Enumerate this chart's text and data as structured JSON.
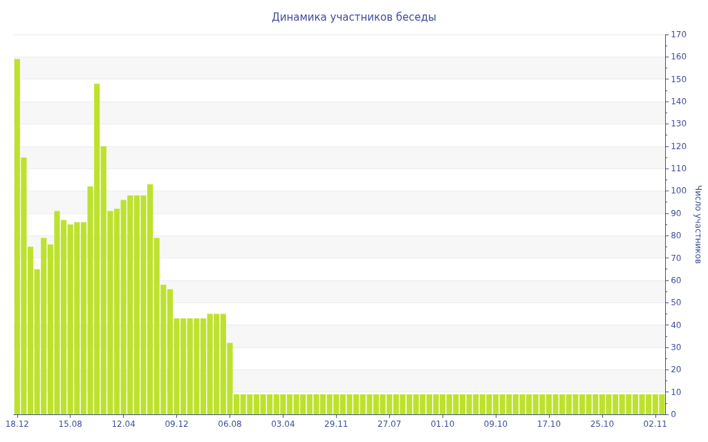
{
  "chart_data": {
    "type": "bar",
    "title": "Динамика участников беседы",
    "ylabel": "Число участников",
    "categories": [
      "18.12",
      null,
      null,
      null,
      null,
      null,
      null,
      null,
      "15.08",
      null,
      null,
      null,
      null,
      null,
      null,
      null,
      "12.04",
      null,
      null,
      null,
      null,
      null,
      null,
      null,
      "09.12",
      null,
      null,
      null,
      null,
      null,
      null,
      null,
      "06.08",
      null,
      null,
      null,
      null,
      null,
      null,
      null,
      "03.04",
      null,
      null,
      null,
      null,
      null,
      null,
      null,
      "29.11",
      null,
      null,
      null,
      null,
      null,
      null,
      null,
      "27.07",
      null,
      null,
      null,
      null,
      null,
      null,
      null,
      "01.10",
      null,
      null,
      null,
      null,
      null,
      null,
      null,
      "09.10",
      null,
      null,
      null,
      null,
      null,
      null,
      null,
      "17.10",
      null,
      null,
      null,
      null,
      null,
      null,
      null,
      "25.10",
      null,
      null,
      null,
      null,
      null,
      null,
      null,
      "02.11",
      null
    ],
    "values": [
      159,
      115,
      75,
      65,
      79,
      76,
      91,
      87,
      85,
      86,
      86,
      102,
      148,
      120,
      91,
      92,
      96,
      98,
      98,
      98,
      103,
      79,
      58,
      56,
      43,
      43,
      43,
      43,
      43,
      45,
      45,
      45,
      32,
      9,
      9,
      9,
      9,
      9,
      9,
      9,
      9,
      9,
      9,
      9,
      9,
      9,
      9,
      9,
      9,
      9,
      9,
      9,
      9,
      9,
      9,
      9,
      9,
      9,
      9,
      9,
      9,
      9,
      9,
      9,
      9,
      9,
      9,
      9,
      9,
      9,
      9,
      9,
      9,
      9,
      9,
      9,
      9,
      9,
      9,
      9,
      9,
      9,
      9,
      9,
      9,
      9,
      9,
      9,
      9,
      9,
      9,
      9,
      9,
      9,
      9,
      9,
      9,
      9
    ],
    "color": "#bde22e",
    "ylim": [
      0,
      170
    ],
    "yticks": [
      0,
      10,
      20,
      30,
      40,
      50,
      60,
      70,
      80,
      90,
      100,
      110,
      120,
      130,
      140,
      150,
      160,
      170
    ],
    "grid": "y"
  }
}
